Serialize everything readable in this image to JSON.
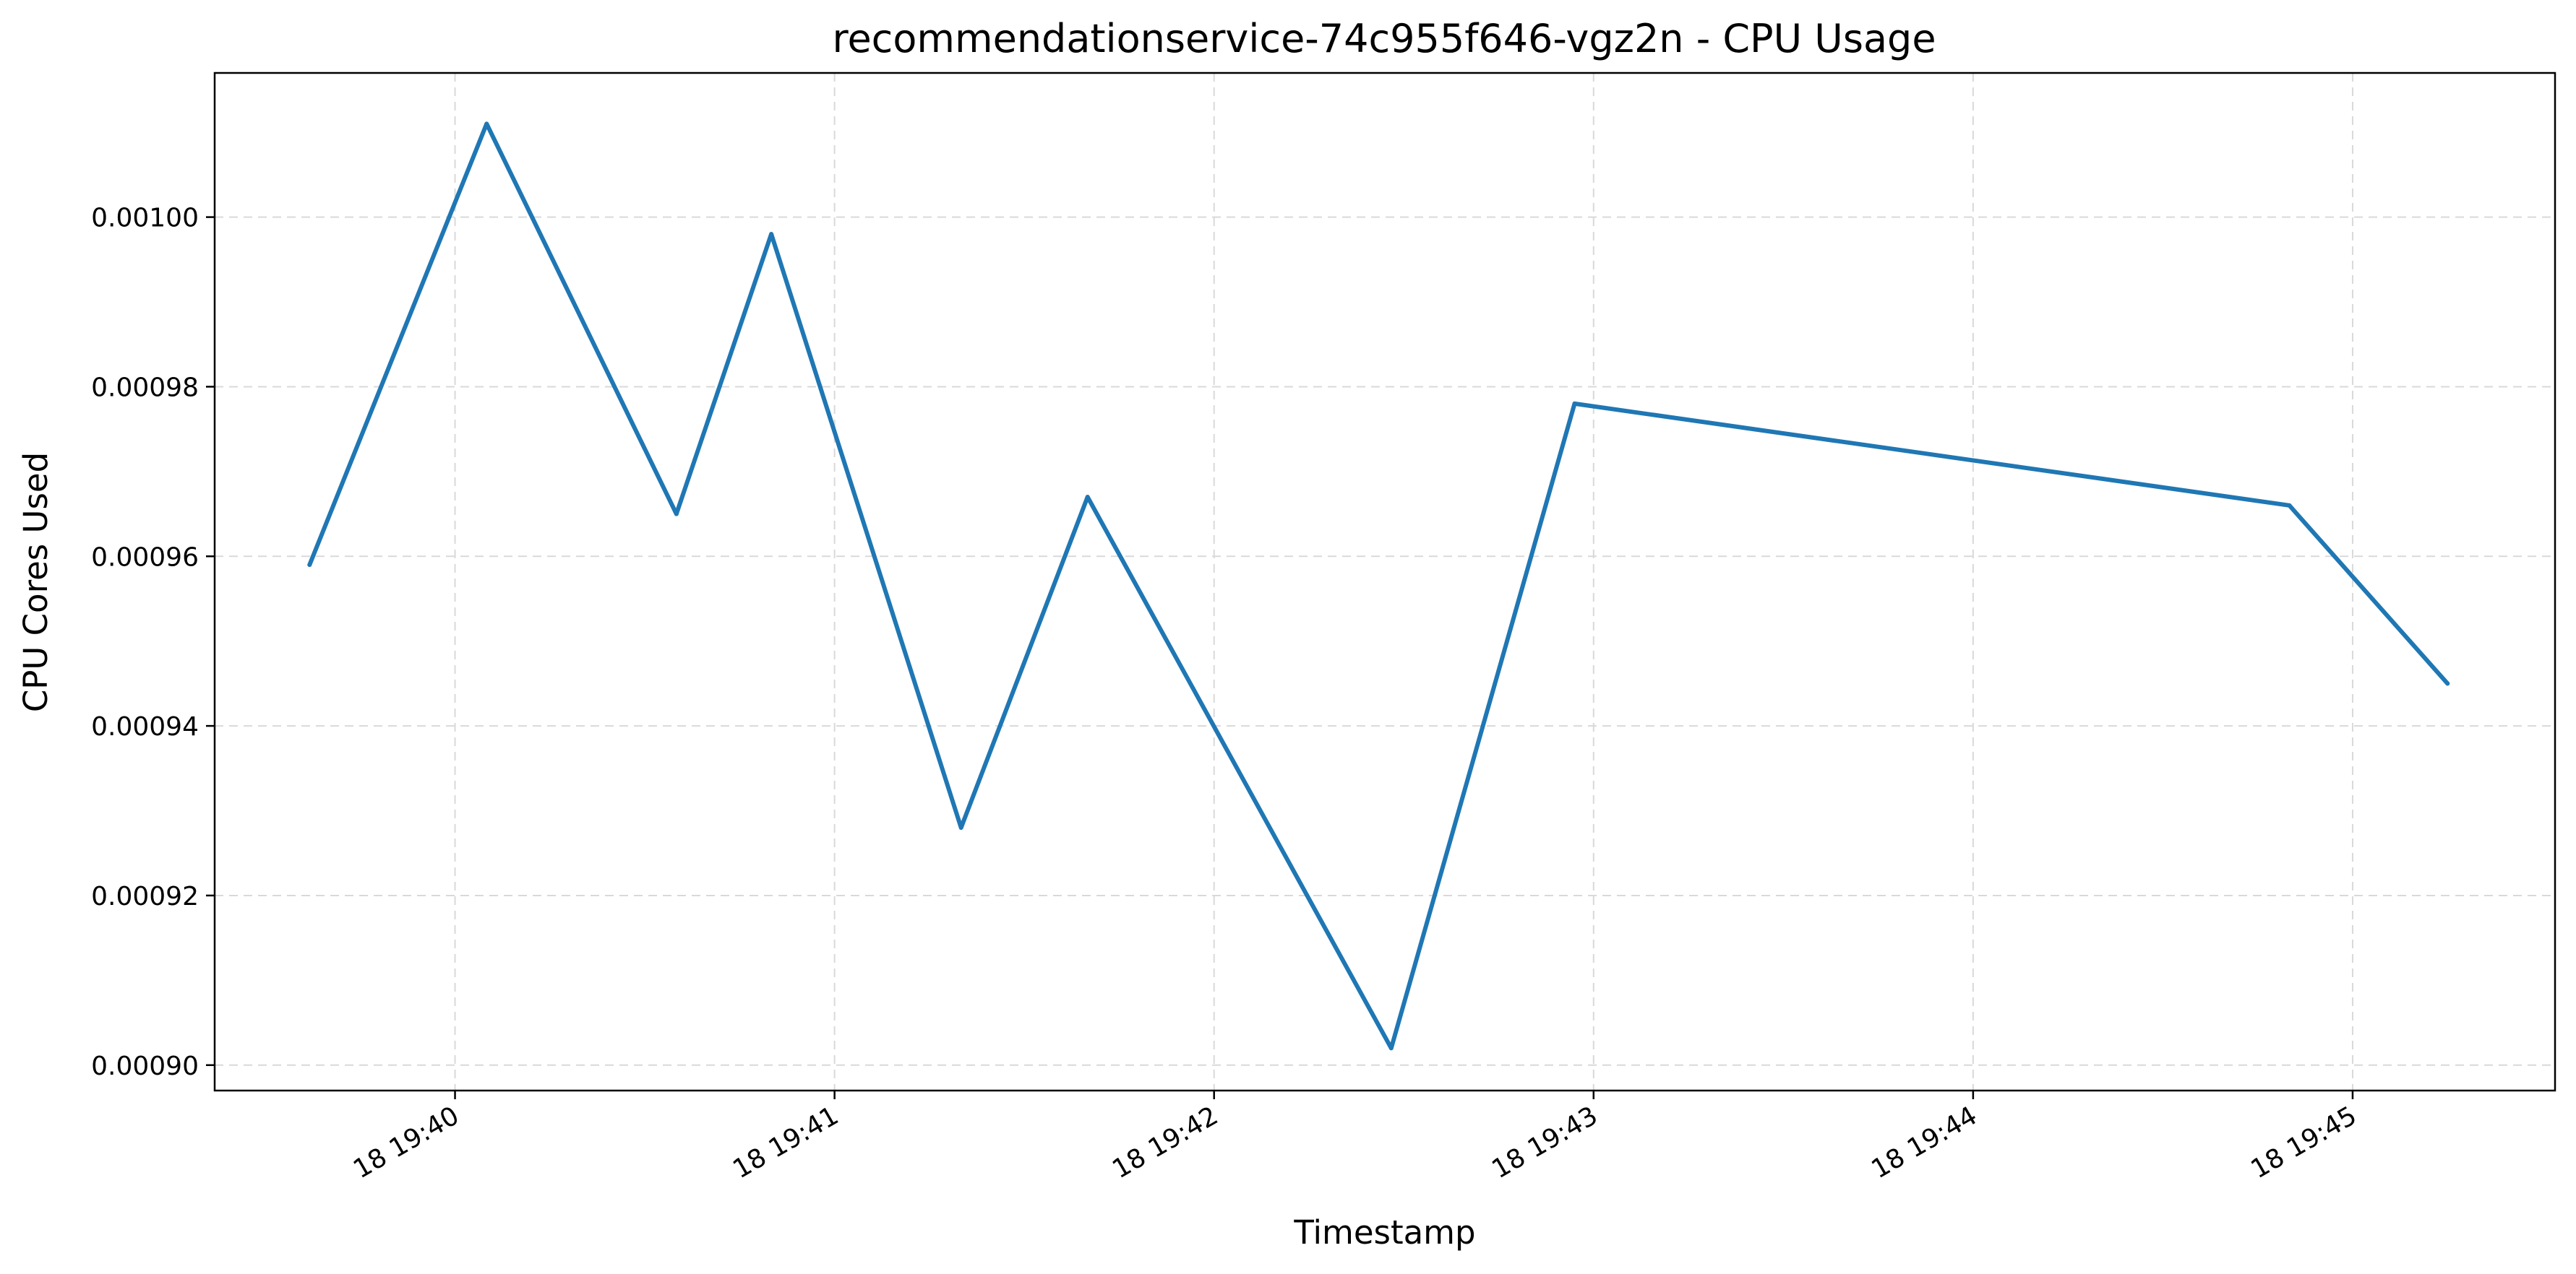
{
  "chart_data": {
    "type": "line",
    "title": "recommendationservice-74c955f646-vgz2n - CPU Usage",
    "xlabel": "Timestamp",
    "ylabel": "CPU Cores Used",
    "x_ticks": [
      "18 19:40",
      "18 19:41",
      "18 19:42",
      "18 19:43",
      "18 19:44",
      "18 19:45"
    ],
    "y_ticks": [
      "0.00090",
      "0.00092",
      "0.00094",
      "0.00096",
      "0.00098",
      "0.00100"
    ],
    "ylim": [
      0.000897,
      0.001017
    ],
    "xlim": [
      "19:39:22",
      "19:45:32"
    ],
    "grid": true,
    "series": [
      {
        "color": "#1f77b4",
        "points": [
          {
            "x": "19:39:37",
            "y": 0.000959
          },
          {
            "x": "19:40:05",
            "y": 0.001011
          },
          {
            "x": "19:40:35",
            "y": 0.000965
          },
          {
            "x": "19:40:50",
            "y": 0.000998
          },
          {
            "x": "19:41:20",
            "y": 0.000928
          },
          {
            "x": "19:41:40",
            "y": 0.000967
          },
          {
            "x": "19:42:28",
            "y": 0.000902
          },
          {
            "x": "19:42:57",
            "y": 0.000978
          },
          {
            "x": "19:44:50",
            "y": 0.000966
          },
          {
            "x": "19:45:15",
            "y": 0.000945
          }
        ]
      }
    ]
  }
}
